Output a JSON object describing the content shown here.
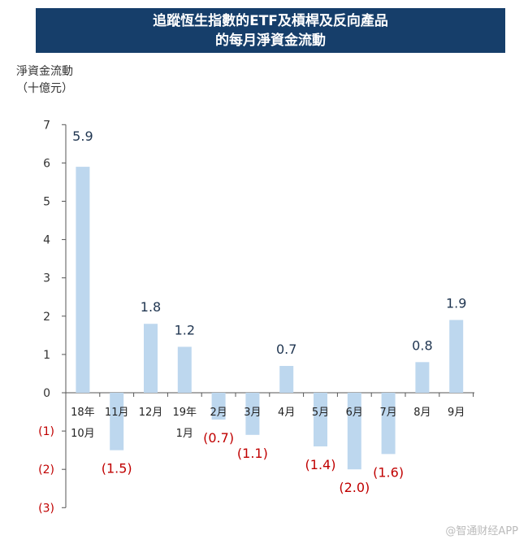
{
  "chart_data": {
    "type": "bar",
    "title_line1": "追蹤恆生指數的ETF及槓桿及反向產品",
    "title_line2": "的每月淨資金流動",
    "ylabel_line1": "淨資金流動",
    "ylabel_line2": "（十億元）",
    "ylim": [
      -3,
      7
    ],
    "yticks": [
      "(3)",
      "(2)",
      "(1)",
      "0",
      "1",
      "2",
      "3",
      "4",
      "5",
      "6",
      "7"
    ],
    "ytick_values": [
      -3,
      -2,
      -1,
      0,
      1,
      2,
      3,
      4,
      5,
      6,
      7
    ],
    "categories": [
      [
        "18年",
        "10月"
      ],
      [
        "11月"
      ],
      [
        "12月"
      ],
      [
        "19年",
        "1月"
      ],
      [
        "2月"
      ],
      [
        "3月"
      ],
      [
        "4月"
      ],
      [
        "5月"
      ],
      [
        "6月"
      ],
      [
        "7月"
      ],
      [
        "8月"
      ],
      [
        "9月"
      ]
    ],
    "values": [
      5.9,
      -1.5,
      1.8,
      1.2,
      -0.7,
      -1.1,
      0.7,
      -1.4,
      -2.0,
      -1.6,
      0.8,
      1.9
    ],
    "value_labels": [
      "5.9",
      "(1.5)",
      "1.8",
      "1.2",
      "(0.7)",
      "(1.1)",
      "0.7",
      "(1.4)",
      "(2.0)",
      "(1.6)",
      "0.8",
      "1.9"
    ],
    "colors": {
      "bar": "#bdd7ee",
      "positive_label": "#1f3550",
      "negative_label": "#c00000",
      "axis": "#555555",
      "title_bg": "#163e6a"
    }
  },
  "watermark": "@智通财经APP"
}
